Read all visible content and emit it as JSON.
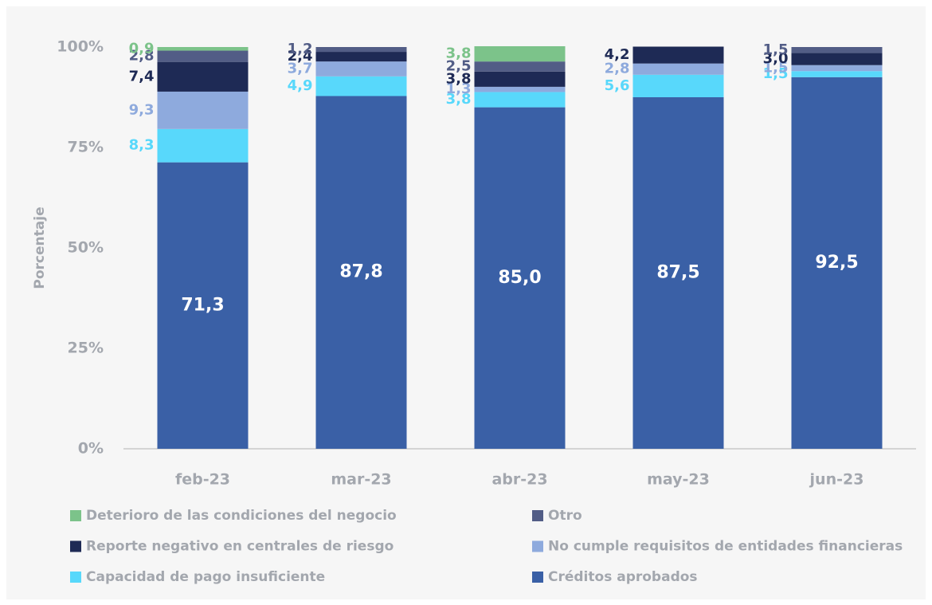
{
  "chart_data": {
    "type": "stacked_bar",
    "y_label": "Porcentaje",
    "categories": [
      "feb-23",
      "mar-23",
      "abr-23",
      "may-23",
      "jun-23"
    ],
    "ylim": [
      0,
      100
    ],
    "yticks": [
      {
        "value": 0,
        "label": "0%"
      },
      {
        "value": 25,
        "label": "25%"
      },
      {
        "value": 50,
        "label": "50%"
      },
      {
        "value": 75,
        "label": "75%"
      },
      {
        "value": 100,
        "label": "100%"
      }
    ],
    "series": [
      {
        "name": "Deterioro de las condiciones del negocio",
        "color": "#7cc38a",
        "values": [
          0.9,
          null,
          3.8,
          null,
          null
        ],
        "value_labels": [
          "0,9",
          null,
          "3,8",
          null,
          null
        ]
      },
      {
        "name": "Otro",
        "color": "#525d86",
        "values": [
          2.8,
          1.2,
          2.5,
          null,
          1.5
        ],
        "value_labels": [
          "2,8",
          "1,2",
          "2,5",
          null,
          "1,5"
        ]
      },
      {
        "name": "Reporte negativo en centrales de riesgo",
        "color": "#1e2a55",
        "values": [
          7.4,
          2.4,
          3.8,
          4.2,
          3.0
        ],
        "value_labels": [
          "7,4",
          "2,4",
          "3,8",
          "4,2",
          "3,0"
        ]
      },
      {
        "name": "No cumple requisitos de entidades financieras",
        "color": "#8eaadd",
        "values": [
          9.3,
          3.7,
          1.3,
          2.8,
          1.5
        ],
        "value_labels": [
          "9,3",
          "3,7",
          "1,3",
          "2,8",
          "1,5"
        ]
      },
      {
        "name": "Capacidad de pago insuficiente",
        "color": "#58d8fb",
        "values": [
          8.3,
          4.9,
          3.8,
          5.6,
          1.5
        ],
        "value_labels": [
          "8,3",
          "4,9",
          "3,8",
          "5,6",
          "1,5"
        ]
      },
      {
        "name": "Créditos aprobados",
        "color": "#3a60a6",
        "values": [
          71.3,
          87.8,
          85.0,
          87.5,
          92.5
        ],
        "value_labels": [
          "71,3",
          "87,8",
          "85,0",
          "87,5",
          "92,5"
        ]
      }
    ]
  }
}
